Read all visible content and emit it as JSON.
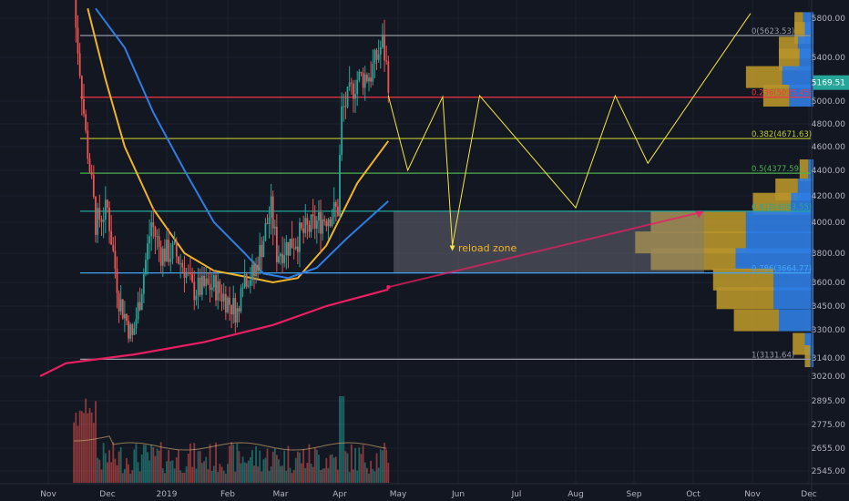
{
  "chart_data": {
    "type": "candlestick",
    "price_axis": {
      "ticks": [
        "5800.00",
        "5400.00",
        "5000.00",
        "4800.00",
        "4600.00",
        "4400.00",
        "4200.00",
        "4000.00",
        "3800.00",
        "3600.00",
        "3450.00",
        "3300.00",
        "3140.00",
        "3020.00",
        "2895.00",
        "2775.00",
        "2655.00",
        "2545.00"
      ],
      "current_price": "5169.51"
    },
    "time_axis": {
      "ticks": [
        "Nov",
        "Dec",
        "2019",
        "Feb",
        "Mar",
        "Apr",
        "May",
        "Jun",
        "Jul",
        "Aug",
        "Sep",
        "Oct",
        "Nov",
        "Dec"
      ]
    },
    "fib_levels": [
      {
        "ratio": 0,
        "price": 5623.53,
        "label": "0(5623.53)",
        "color": "#9598a1"
      },
      {
        "ratio": 0.236,
        "price": 5035.45,
        "label": "0.236(5035.45)",
        "color": "#f23645"
      },
      {
        "ratio": 0.382,
        "price": 4671.63,
        "label": "0.382(4671.63)",
        "color": "#c0ca33"
      },
      {
        "ratio": 0.5,
        "price": 4377.59,
        "label": "0.5(4377.59)",
        "color": "#4caf50"
      },
      {
        "ratio": 0.618,
        "price": 4083.55,
        "label": "0.618(4083.55)",
        "color": "#26a69a"
      },
      {
        "ratio": 0.786,
        "price": 3664.77,
        "label": "0.786(3664.77)",
        "color": "#42a5f5"
      },
      {
        "ratio": 1,
        "price": 3131.64,
        "label": "1(3131.64)",
        "color": "#9598a1"
      }
    ],
    "annotation": "reload zone",
    "colors": {
      "up": "#26a69a",
      "down": "#ef5350",
      "ma_fast": "#f0b429",
      "ma_slow": "#2f7de1",
      "ma_long": "#e91e63",
      "projection": "#f5e642",
      "zone": "#787b86"
    },
    "volume_profile": [
      {
        "price": 5750,
        "buy": 0.05,
        "sell": 0.06
      },
      {
        "price": 5650,
        "buy": 0.06,
        "sell": 0.05
      },
      {
        "price": 5500,
        "buy": 0.11,
        "sell": 0.09
      },
      {
        "price": 5380,
        "buy": 0.12,
        "sell": 0.08
      },
      {
        "price": 5220,
        "buy": 0.21,
        "sell": 0.18
      },
      {
        "price": 5050,
        "buy": 0.15,
        "sell": 0.14
      },
      {
        "price": 4400,
        "buy": 0.05,
        "sell": 0.03
      },
      {
        "price": 4250,
        "buy": 0.13,
        "sell": 0.09
      },
      {
        "price": 4140,
        "buy": 0.22,
        "sell": 0.13
      },
      {
        "price": 4000,
        "buy": 0.55,
        "sell": 0.39
      },
      {
        "price": 3870,
        "buy": 0.64,
        "sell": 0.39
      },
      {
        "price": 3760,
        "buy": 0.49,
        "sell": 0.45
      },
      {
        "price": 3620,
        "buy": 0.35,
        "sell": 0.23
      },
      {
        "price": 3500,
        "buy": 0.33,
        "sell": 0.23
      },
      {
        "price": 3360,
        "buy": 0.26,
        "sell": 0.2
      },
      {
        "price": 3220,
        "buy": 0.07,
        "sell": 0.05
      },
      {
        "price": 3150,
        "buy": 0.03,
        "sell": 0.02
      }
    ]
  }
}
